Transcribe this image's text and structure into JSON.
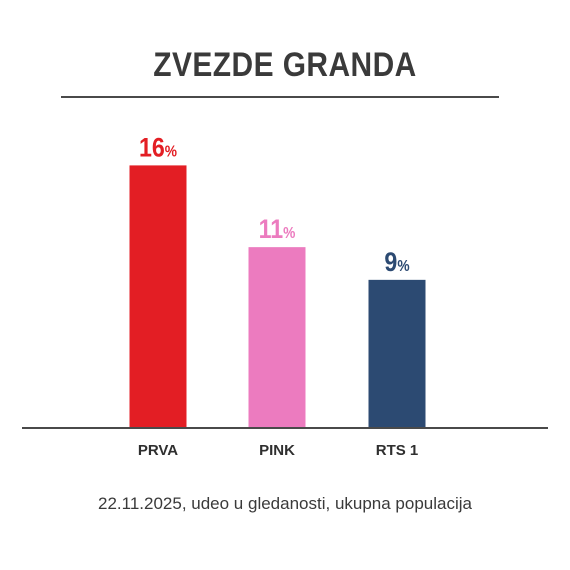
{
  "chart_data": {
    "type": "bar",
    "title": "ZVEZDE GRANDA",
    "categories": [
      "PRVA",
      "PINK",
      "RTS 1"
    ],
    "values": [
      16,
      11,
      9
    ],
    "value_labels": [
      "16",
      "11",
      "9"
    ],
    "unit": "%",
    "colors": [
      "#e31e24",
      "#ec7bbf",
      "#2c4a72"
    ],
    "ylim": [
      0,
      18
    ],
    "grid": false,
    "legend": "none",
    "xlabel": "",
    "ylabel": ""
  },
  "footnote": "22.11.2025, udeo u gledanosti, ukupna populacija"
}
